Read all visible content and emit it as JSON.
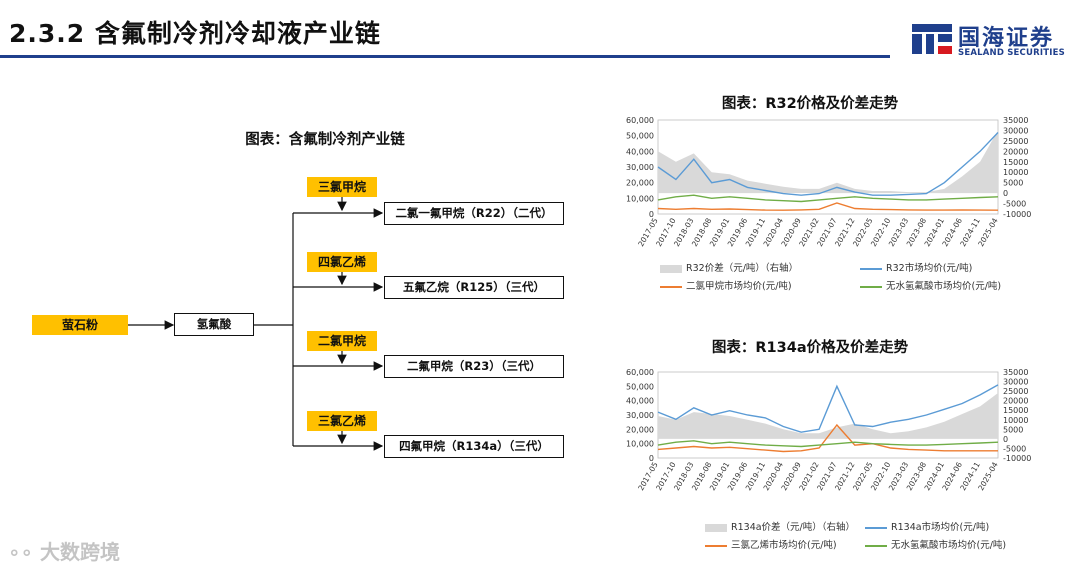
{
  "header": {
    "title": "2.3.2 含氟制冷剂冷却液产业链",
    "logo_cn": "国海证券",
    "logo_en": "SEALAND SECURITIES",
    "brand_color": "#1f3f8c"
  },
  "diagram": {
    "title": "图表：含氟制冷剂产业链",
    "source": "萤石粉",
    "middle": "氢氟酸",
    "branches": [
      {
        "input": "三氯甲烷",
        "product": "二氯一氟甲烷（R22）（二代）"
      },
      {
        "input": "四氯乙烯",
        "product": "五氟乙烷（R125）（三代）"
      },
      {
        "input": "二氯甲烷",
        "product": "二氟甲烷（R23）（三代）"
      },
      {
        "input": "三氯乙烯",
        "product": "四氟甲烷（R134a）（三代）"
      }
    ],
    "colors": {
      "input_fill": "#ffc000"
    }
  },
  "chart_data": [
    {
      "type": "line",
      "title": "图表：R32价格及价差走势",
      "x": [
        "2017-05",
        "2017-10",
        "2018-03",
        "2018-08",
        "2019-01",
        "2019-06",
        "2019-11",
        "2020-04",
        "2020-09",
        "2021-02",
        "2021-07",
        "2021-12",
        "2022-05",
        "2022-10",
        "2023-03",
        "2023-08",
        "2024-01",
        "2024-06",
        "2024-11",
        "2025-04"
      ],
      "yticks_left": [
        "0",
        "10,000",
        "20,000",
        "30,000",
        "40,000",
        "50,000",
        "60,000"
      ],
      "yticks_right": [
        "-10000",
        "-5000",
        "0",
        "5000",
        "10000",
        "15000",
        "20000",
        "25000",
        "30000",
        "35000"
      ],
      "ylim_left": [
        0,
        60000
      ],
      "ylim_right": [
        -10000,
        35000
      ],
      "series": [
        {
          "name": "R32价差（元/吨）（右轴）",
          "kind": "area",
          "axis": "right",
          "color": "#d9d9d9",
          "values": [
            20000,
            15000,
            19000,
            10000,
            9000,
            6000,
            4500,
            3000,
            2000,
            2000,
            5000,
            2000,
            1000,
            1000,
            500,
            500,
            2000,
            8000,
            15000,
            30000
          ]
        },
        {
          "name": "R32市场均价(元/吨)",
          "kind": "line",
          "axis": "left",
          "color": "#5b9bd5",
          "values": [
            30000,
            22000,
            35000,
            20000,
            22000,
            17000,
            15000,
            13000,
            12000,
            13000,
            17000,
            14000,
            12000,
            12000,
            12500,
            13000,
            20000,
            30000,
            40000,
            52000
          ]
        },
        {
          "name": "二氯甲烷市场均价(元/吨)",
          "kind": "line",
          "axis": "left",
          "color": "#ed7d31",
          "values": [
            3500,
            3000,
            3500,
            3000,
            3200,
            2800,
            2500,
            2400,
            2600,
            3000,
            7000,
            3500,
            3000,
            2800,
            2600,
            2500,
            2500,
            2600,
            2500,
            2400
          ]
        },
        {
          "name": "无水氢氟酸市场均价(元/吨)",
          "kind": "line",
          "axis": "left",
          "color": "#70ad47",
          "values": [
            9000,
            11000,
            12000,
            10000,
            11000,
            10000,
            9000,
            8500,
            8000,
            9000,
            10000,
            11000,
            10000,
            9500,
            9000,
            9000,
            9500,
            10000,
            10500,
            11000
          ]
        }
      ]
    },
    {
      "type": "line",
      "title": "图表：R134a价格及价差走势",
      "x": [
        "2017-05",
        "2017-10",
        "2018-03",
        "2018-08",
        "2019-01",
        "2019-06",
        "2019-11",
        "2020-04",
        "2020-09",
        "2021-02",
        "2021-07",
        "2021-12",
        "2022-05",
        "2022-10",
        "2023-03",
        "2023-08",
        "2024-01",
        "2024-06",
        "2024-11",
        "2025-04"
      ],
      "yticks_left": [
        "0",
        "10,000",
        "20,000",
        "30,000",
        "40,000",
        "50,000",
        "60,000"
      ],
      "yticks_right": [
        "-10000",
        "-5000",
        "0",
        "5000",
        "10000",
        "15000",
        "20000",
        "25000",
        "30000",
        "35000"
      ],
      "ylim_left": [
        0,
        60000
      ],
      "ylim_right": [
        -10000,
        35000
      ],
      "series": [
        {
          "name": "R134a价差（元/吨）（右轴）",
          "kind": "area",
          "axis": "right",
          "color": "#d9d9d9",
          "values": [
            12000,
            10000,
            14000,
            13000,
            12000,
            10000,
            8000,
            5000,
            3000,
            3000,
            6000,
            8000,
            5000,
            3000,
            4000,
            6000,
            9000,
            13000,
            17000,
            24000
          ]
        },
        {
          "name": "R134a市场均价(元/吨)",
          "kind": "line",
          "axis": "left",
          "color": "#5b9bd5",
          "values": [
            32000,
            27000,
            35000,
            30000,
            33000,
            30000,
            28000,
            22000,
            18000,
            20000,
            50000,
            23000,
            22000,
            25000,
            27000,
            30000,
            34000,
            38000,
            44000,
            51000
          ]
        },
        {
          "name": "三氯乙烯市场均价(元/吨)",
          "kind": "line",
          "axis": "left",
          "color": "#ed7d31",
          "values": [
            6000,
            7000,
            8000,
            7000,
            7500,
            6500,
            5500,
            4500,
            5000,
            7000,
            23000,
            9000,
            10000,
            7000,
            6000,
            5500,
            5000,
            5000,
            5000,
            5000
          ]
        },
        {
          "name": "无水氢氟酸市场均价(元/吨)",
          "kind": "line",
          "axis": "left",
          "color": "#70ad47",
          "values": [
            9000,
            11000,
            12000,
            10000,
            11000,
            10000,
            9000,
            8500,
            8000,
            9000,
            10000,
            11000,
            10000,
            9500,
            9000,
            9000,
            9500,
            10000,
            10500,
            11000
          ]
        }
      ]
    }
  ],
  "watermark": "大数跨境"
}
